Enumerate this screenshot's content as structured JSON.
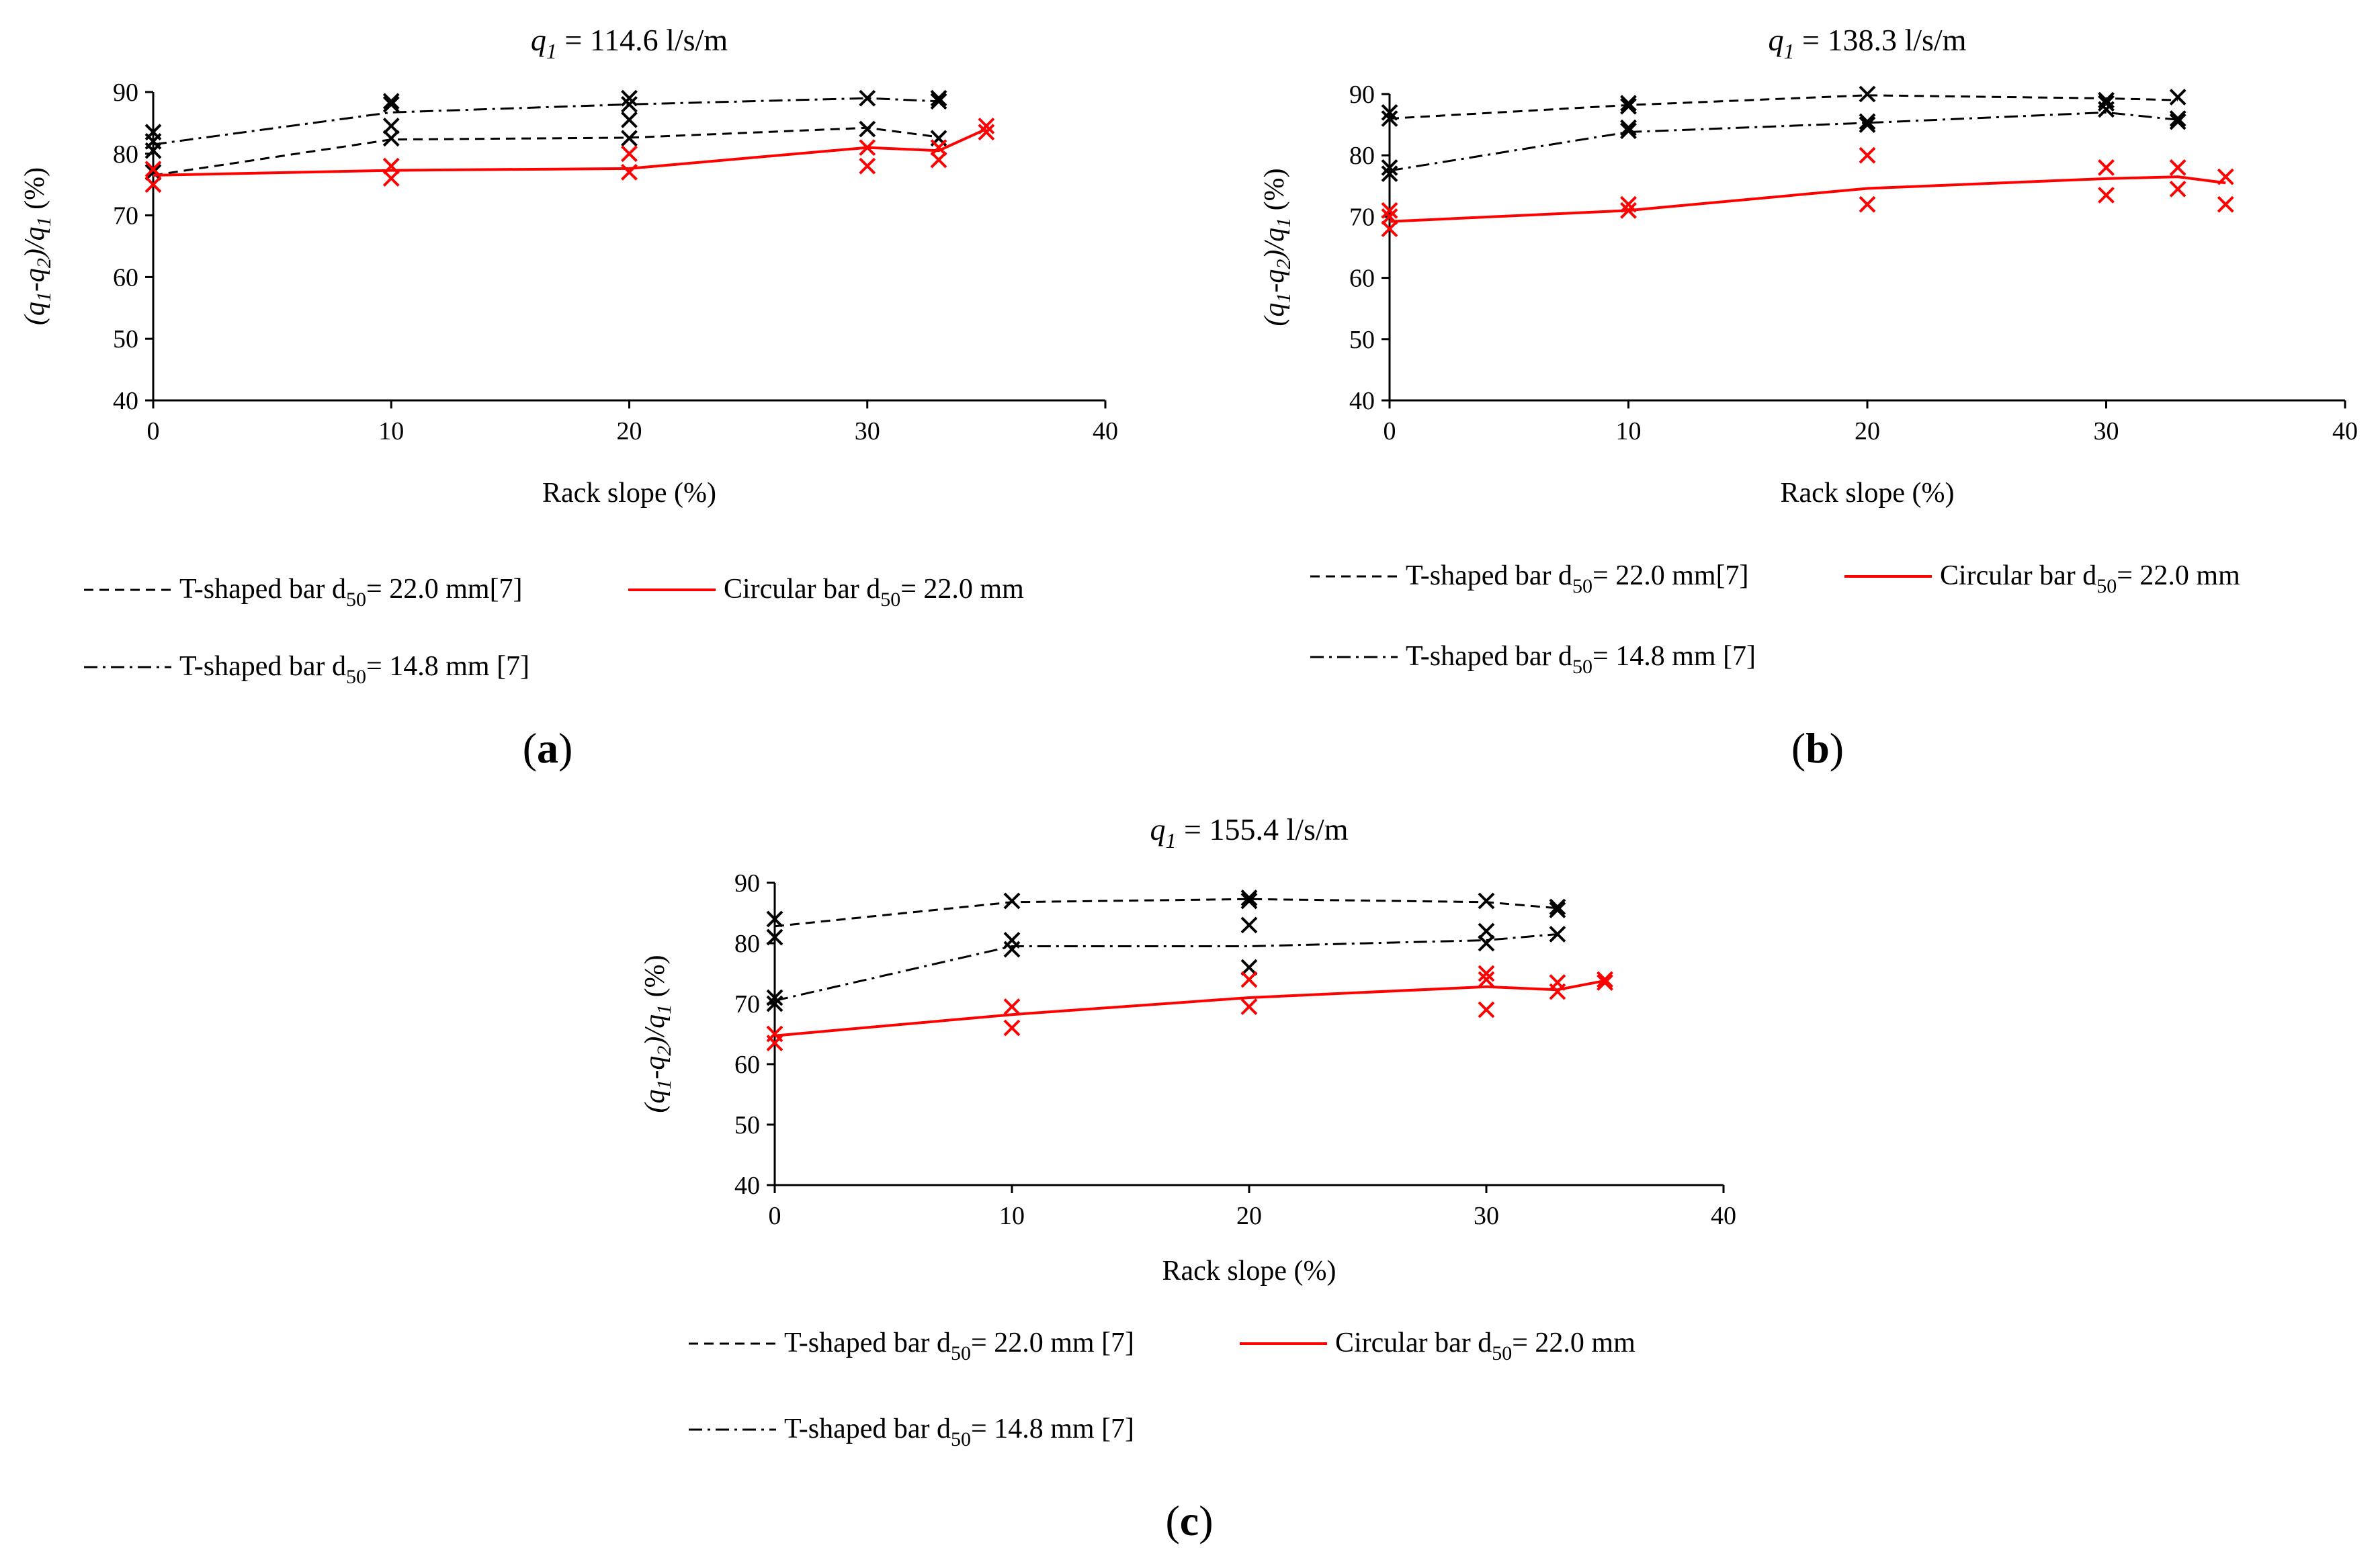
{
  "figure": {
    "marker_colors": {
      "T-shaped": "#000000",
      "Circular": "#ff0000"
    }
  },
  "chart_data": [
    {
      "type": "line",
      "panel_label": "(a)",
      "title_var": "q",
      "title_sub": "1",
      "title_value": " = 114.6  l/s/m",
      "xlabel": "Rack slope (%)",
      "ylabel": "(q1-q2)/q1 (%)",
      "xlim": [
        0,
        40
      ],
      "ylim": [
        40,
        90
      ],
      "xticks": [
        0,
        10,
        20,
        30,
        40
      ],
      "yticks": [
        40,
        50,
        60,
        70,
        80,
        90
      ],
      "series": [
        {
          "name": "T-shaped bar d50= 22.0 mm[7]",
          "label_a": "T-shaped bar  d",
          "label_sub": "50",
          "label_b": "=  22.0 mm[7]",
          "style": "dashed",
          "color": "#000000",
          "line": [
            [
              0,
              76.5
            ],
            [
              10,
              82.3
            ],
            [
              20,
              82.6
            ],
            [
              30,
              84.2
            ],
            [
              33,
              82.7
            ]
          ],
          "points": [
            [
              0,
              77
            ],
            [
              0,
              80.5
            ],
            [
              10,
              82.5
            ],
            [
              10,
              84.5
            ],
            [
              20,
              82.5
            ],
            [
              20,
              85.5
            ],
            [
              30,
              84
            ],
            [
              33,
              82.5
            ]
          ]
        },
        {
          "name": "T-shaped bar d50= 14.8 mm [7]",
          "label_a": "T-shaped bar  d",
          "label_sub": "50",
          "label_b": "=  14.8 mm [7]",
          "style": "dashdot",
          "color": "#000000",
          "line": [
            [
              0,
              81.5
            ],
            [
              10,
              86.7
            ],
            [
              20,
              88.0
            ],
            [
              30,
              89.0
            ],
            [
              33,
              88.5
            ]
          ],
          "points": [
            [
              0,
              82
            ],
            [
              0,
              83.5
            ],
            [
              10,
              88
            ],
            [
              10,
              88.5
            ],
            [
              20,
              88
            ],
            [
              20,
              89
            ],
            [
              30,
              89
            ],
            [
              33,
              88.5
            ],
            [
              33,
              89
            ]
          ]
        },
        {
          "name": "Circular bar d50= 22.0 mm",
          "label_a": "Circular bar  d",
          "label_sub": "50",
          "label_b": "=  22.0 mm",
          "style": "solid",
          "color": "#ff0000",
          "line": [
            [
              0,
              76.5
            ],
            [
              10,
              77.3
            ],
            [
              20,
              77.6
            ],
            [
              30,
              81.0
            ],
            [
              33,
              80.5
            ],
            [
              35,
              84.0
            ]
          ],
          "points": [
            [
              0,
              75
            ],
            [
              0,
              77.5
            ],
            [
              10,
              76
            ],
            [
              10,
              78
            ],
            [
              20,
              77
            ],
            [
              20,
              80
            ],
            [
              30,
              78
            ],
            [
              30,
              81
            ],
            [
              33,
              79
            ],
            [
              33,
              81
            ],
            [
              35,
              83.5
            ],
            [
              35,
              84.5
            ]
          ]
        }
      ]
    },
    {
      "type": "line",
      "panel_label": "(b)",
      "title_var": "q",
      "title_sub": "1",
      "title_value": " = 138.3  l/s/m",
      "xlabel": "Rack slope (%)",
      "ylabel": "(q1-q2)/q1 (%)",
      "xlim": [
        0,
        40
      ],
      "ylim": [
        40,
        90
      ],
      "xticks": [
        0,
        10,
        20,
        30,
        40
      ],
      "yticks": [
        40,
        50,
        60,
        70,
        80,
        90
      ],
      "series": [
        {
          "name": "T-shaped bar d50= 22.0 mm[7]",
          "label_a": "T-shaped bar  d",
          "label_sub": "50",
          "label_b": "=  22.0 mm[7]",
          "style": "dashed",
          "color": "#000000",
          "line": [
            [
              0,
              86.0
            ],
            [
              10,
              88.2
            ],
            [
              20,
              89.8
            ],
            [
              30,
              89.3
            ],
            [
              33,
              89.0
            ]
          ],
          "points": [
            [
              0,
              86
            ],
            [
              0,
              87
            ],
            [
              10,
              88
            ],
            [
              10,
              88.5
            ],
            [
              20,
              90
            ],
            [
              30,
              89
            ],
            [
              30,
              88.5
            ],
            [
              33,
              89.5
            ]
          ]
        },
        {
          "name": "T-shaped bar d50= 14.8 mm [7]",
          "label_a": "T-shaped bar  d",
          "label_sub": "50",
          "label_b": "=  14.8 mm [7]",
          "style": "dashdot",
          "color": "#000000",
          "line": [
            [
              0,
              77.5
            ],
            [
              10,
              83.8
            ],
            [
              20,
              85.3
            ],
            [
              30,
              87.0
            ],
            [
              33,
              85.8
            ]
          ],
          "points": [
            [
              0,
              77
            ],
            [
              0,
              78
            ],
            [
              10,
              84
            ],
            [
              10,
              84.5
            ],
            [
              20,
              85.5
            ],
            [
              20,
              85
            ],
            [
              30,
              87.5
            ],
            [
              33,
              86
            ],
            [
              33,
              85.5
            ]
          ]
        },
        {
          "name": "Circular bar d50= 22.0 mm",
          "label_a": "Circular bar  d",
          "label_sub": "50",
          "label_b": "=  22.0 mm",
          "style": "solid",
          "color": "#ff0000",
          "line": [
            [
              0,
              69.2
            ],
            [
              10,
              71.0
            ],
            [
              20,
              74.6
            ],
            [
              30,
              76.2
            ],
            [
              33,
              76.5
            ],
            [
              35,
              75.5
            ]
          ],
          "points": [
            [
              0,
              68
            ],
            [
              0,
              70
            ],
            [
              0,
              71
            ],
            [
              10,
              71
            ],
            [
              10,
              72
            ],
            [
              20,
              72
            ],
            [
              20,
              80
            ],
            [
              30,
              73.5
            ],
            [
              30,
              78
            ],
            [
              33,
              74.5
            ],
            [
              33,
              78
            ],
            [
              35,
              72
            ],
            [
              35,
              76.5
            ]
          ]
        }
      ]
    },
    {
      "type": "line",
      "panel_label": "(c)",
      "title_var": "q",
      "title_sub": "1",
      "title_value": " = 155.4  l/s/m",
      "xlabel": "Rack slope (%)",
      "ylabel": "(q1-q2)/q1 (%)",
      "xlim": [
        0,
        40
      ],
      "ylim": [
        40,
        90
      ],
      "xticks": [
        0,
        10,
        20,
        30,
        40
      ],
      "yticks": [
        40,
        50,
        60,
        70,
        80,
        90
      ],
      "series": [
        {
          "name": "T-shaped bar d50= 22.0 mm [7]",
          "label_a": "T-shaped bar  d",
          "label_sub": "50",
          "label_b": "=  22.0 mm [7]",
          "style": "dashed",
          "color": "#000000",
          "line": [
            [
              0,
              82.8
            ],
            [
              10,
              86.8
            ],
            [
              20,
              87.3
            ],
            [
              30,
              86.8
            ],
            [
              33,
              85.8
            ]
          ],
          "points": [
            [
              0,
              84
            ],
            [
              10,
              87
            ],
            [
              20,
              87.5
            ],
            [
              20,
              87
            ],
            [
              30,
              87
            ],
            [
              33,
              86
            ],
            [
              33,
              85.5
            ]
          ]
        },
        {
          "name": "T-shaped bar d50= 14.8 mm [7]",
          "label_a": "T-shaped bar  d",
          "label_sub": "50",
          "label_b": "=  14.8 mm [7]",
          "style": "dashdot",
          "color": "#000000",
          "line": [
            [
              0,
              70.5
            ],
            [
              10,
              79.5
            ],
            [
              20,
              79.5
            ],
            [
              30,
              80.5
            ],
            [
              33,
              81.5
            ]
          ],
          "points": [
            [
              0,
              70
            ],
            [
              0,
              71
            ],
            [
              0,
              81
            ],
            [
              10,
              79
            ],
            [
              10,
              80.5
            ],
            [
              20,
              83
            ],
            [
              20,
              76
            ],
            [
              30,
              80
            ],
            [
              30,
              82
            ],
            [
              33,
              81.5
            ]
          ]
        },
        {
          "name": "Circular bar d50= 22.0 mm",
          "label_a": "Circular bar  d",
          "label_sub": "50",
          "label_b": "=  22.0 mm",
          "style": "solid",
          "color": "#ff0000",
          "line": [
            [
              0,
              64.7
            ],
            [
              10,
              68.2
            ],
            [
              20,
              71.0
            ],
            [
              30,
              72.8
            ],
            [
              33,
              72.3
            ],
            [
              35,
              73.8
            ]
          ],
          "points": [
            [
              0,
              63.5
            ],
            [
              0,
              65
            ],
            [
              10,
              66
            ],
            [
              10,
              69.5
            ],
            [
              20,
              69.5
            ],
            [
              20,
              74
            ],
            [
              30,
              69
            ],
            [
              30,
              74
            ],
            [
              30,
              75
            ],
            [
              33,
              72
            ],
            [
              33,
              73.5
            ],
            [
              35,
              73.5
            ],
            [
              35,
              74
            ]
          ]
        }
      ]
    }
  ]
}
